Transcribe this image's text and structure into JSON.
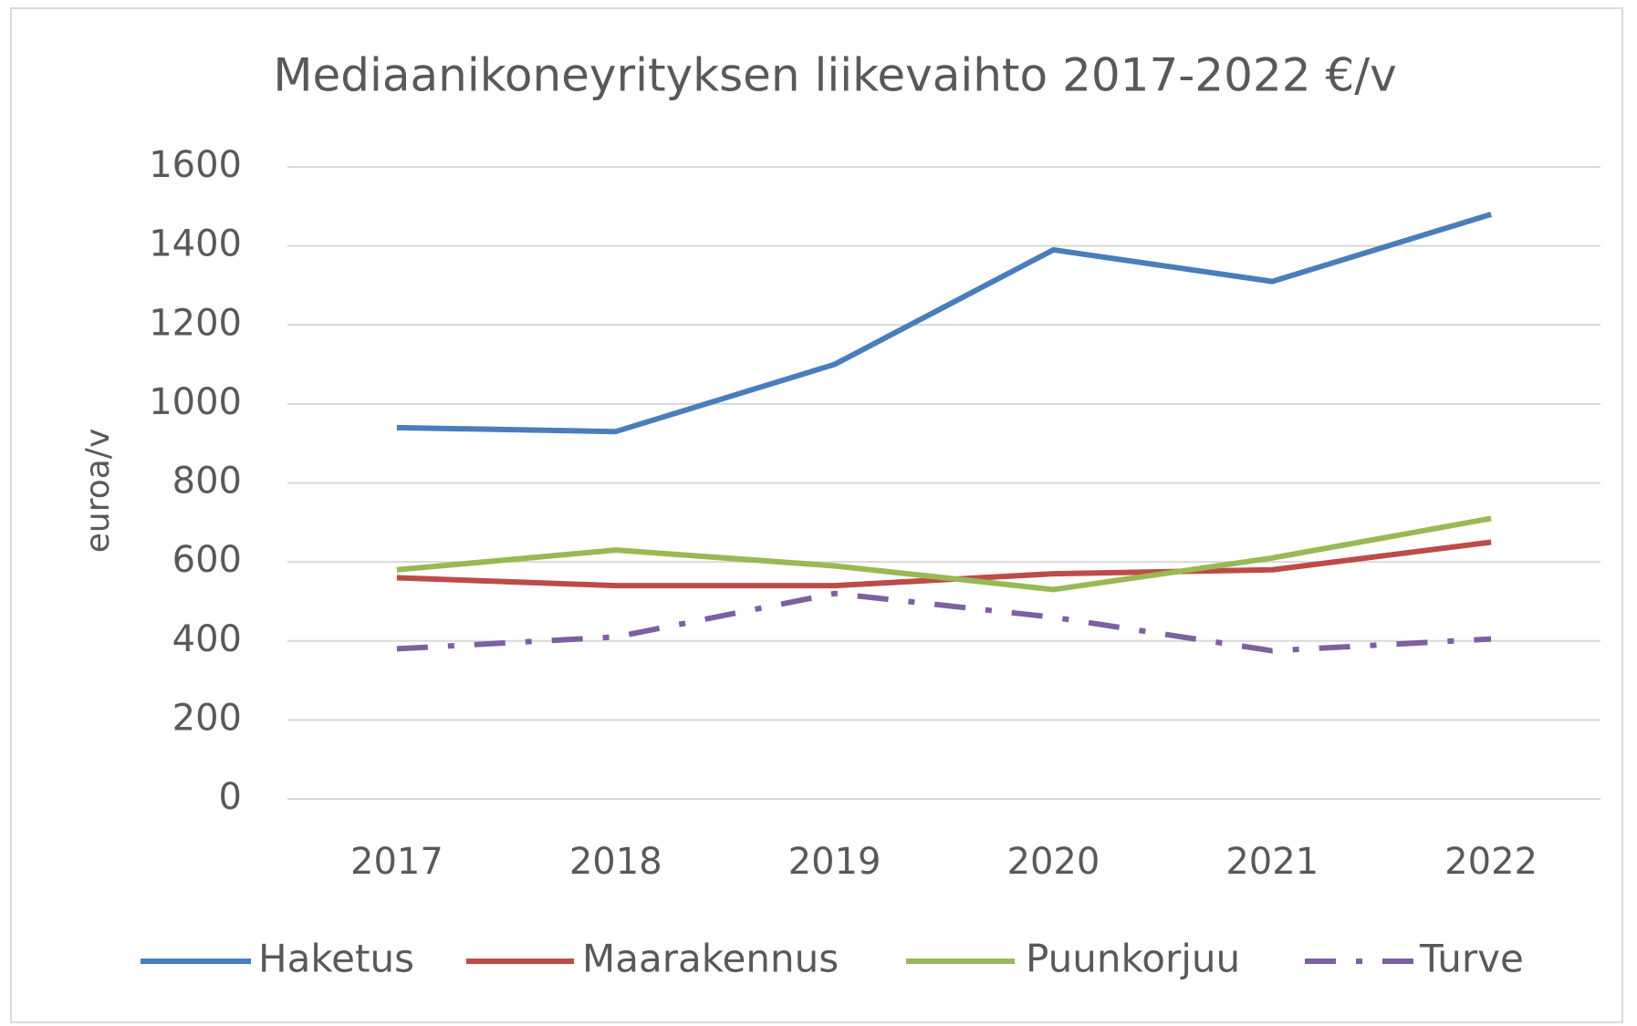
{
  "chart_data": {
    "type": "line",
    "title": "Mediaanikoneyrityksen liikevaihto 2017-2022 €/v",
    "y_label": "euroa/v",
    "categories": [
      "2017",
      "2018",
      "2019",
      "2020",
      "2021",
      "2022"
    ],
    "series": [
      {
        "name": "Haketus",
        "color": "#4a7ebb",
        "dash": "solid",
        "values": [
          940,
          930,
          1100,
          1390,
          1310,
          1480
        ]
      },
      {
        "name": "Maarakennus",
        "color": "#be4b48",
        "dash": "solid",
        "values": [
          560,
          540,
          540,
          570,
          580,
          650
        ]
      },
      {
        "name": "Puunkorjuu",
        "color": "#98b954",
        "dash": "solid",
        "values": [
          580,
          630,
          590,
          530,
          610,
          710
        ]
      },
      {
        "name": "Turve",
        "color": "#7d60a0",
        "dash": "dash-dot",
        "values": [
          380,
          410,
          520,
          460,
          375,
          405
        ]
      }
    ],
    "ylim": [
      0,
      1600
    ],
    "yticks": [
      0,
      200,
      400,
      600,
      800,
      1000,
      1200,
      1400,
      1600
    ],
    "grid": true,
    "legend": "bottom"
  }
}
